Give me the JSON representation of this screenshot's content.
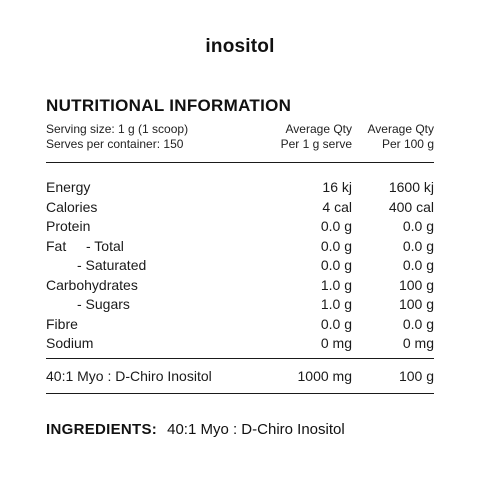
{
  "product": {
    "name": "inositol"
  },
  "panel": {
    "heading": "NUTRITIONAL INFORMATION",
    "serving_size": "Serving size: 1 g (1 scoop)",
    "serves_per_container": "Serves per container: 150",
    "col_serve_line1": "Average Qty",
    "col_serve_line2": "Per 1 g serve",
    "col_100g_line1": "Average Qty",
    "col_100g_line2": "Per 100 g"
  },
  "nutrients": [
    {
      "label": "Energy",
      "per_serve": "16 kj",
      "per_100g": "1600 kj"
    },
    {
      "label": "Calories",
      "per_serve": "4 cal",
      "per_100g": "400 cal"
    },
    {
      "label": "Protein",
      "per_serve": "0.0 g",
      "per_100g": "0.0 g"
    },
    {
      "label_prefix": "Fat",
      "label": "- Total",
      "per_serve": "0.0 g",
      "per_100g": "0.0 g"
    },
    {
      "label": "- Saturated",
      "per_serve": "0.0 g",
      "per_100g": "0.0 g"
    },
    {
      "label": "Carbohydrates",
      "per_serve": "1.0 g",
      "per_100g": "100 g"
    },
    {
      "label": "- Sugars",
      "per_serve": "1.0 g",
      "per_100g": "100 g"
    },
    {
      "label": "Fibre",
      "per_serve": "0.0 g",
      "per_100g": "0.0 g"
    },
    {
      "label": "Sodium",
      "per_serve": "0 mg",
      "per_100g": "0 mg"
    }
  ],
  "active": {
    "label": "40:1 Myo : D-Chiro Inositol",
    "per_serve": "1000 mg",
    "per_100g": "100 g"
  },
  "ingredients": {
    "label": "INGREDIENTS:",
    "text": "40:1 Myo : D-Chiro Inositol"
  }
}
